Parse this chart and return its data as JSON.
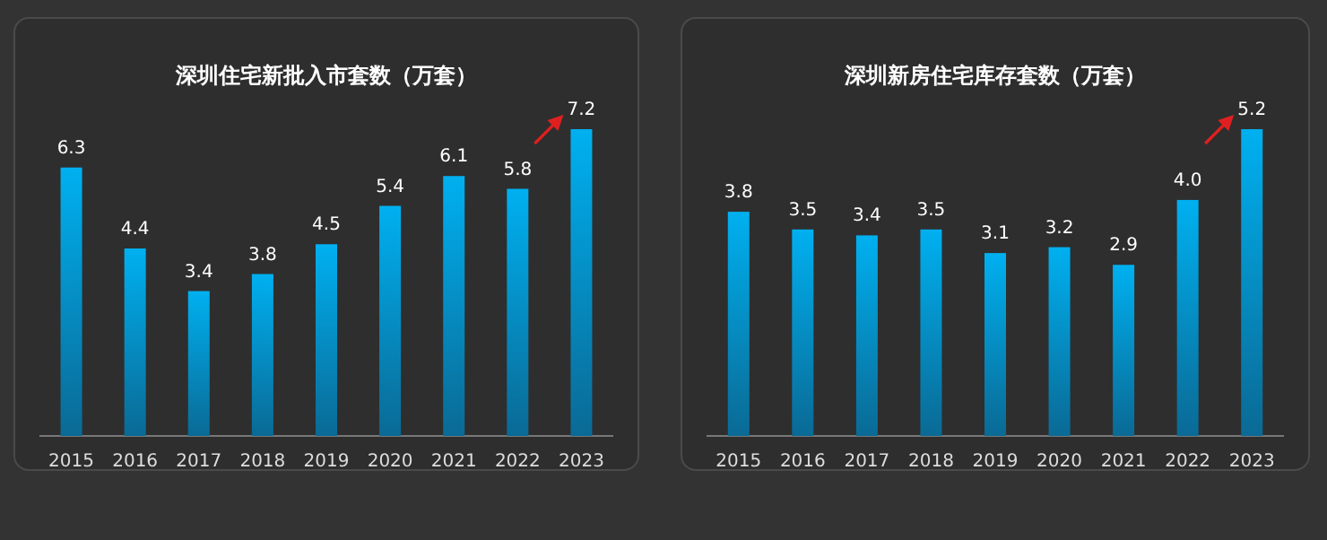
{
  "chart_data": [
    {
      "type": "bar",
      "title": "深圳住宅新批入市套数（万套）",
      "categories": [
        "2015",
        "2016",
        "2017",
        "2018",
        "2019",
        "2020",
        "2021",
        "2022",
        "2023"
      ],
      "values": [
        6.3,
        4.4,
        3.4,
        3.8,
        4.5,
        5.4,
        6.1,
        5.8,
        7.2
      ],
      "value_labels": [
        "6.3",
        "4.4",
        "3.4",
        "3.8",
        "4.5",
        "5.4",
        "6.1",
        "5.8",
        "7.2"
      ],
      "color": "#00b0f0"
    },
    {
      "type": "bar",
      "title": "深圳新房住宅库存套数（万套）",
      "categories": [
        "2015",
        "2016",
        "2017",
        "2018",
        "2019",
        "2020",
        "2021",
        "2022",
        "2023"
      ],
      "values": [
        3.8,
        3.5,
        3.4,
        3.5,
        3.1,
        3.2,
        2.9,
        4.0,
        5.2
      ],
      "value_labels": [
        "3.8",
        "3.5",
        "3.4",
        "3.5",
        "3.1",
        "3.2",
        "2.9",
        "4.0",
        "5.2"
      ],
      "color": "#00b0f0"
    }
  ]
}
